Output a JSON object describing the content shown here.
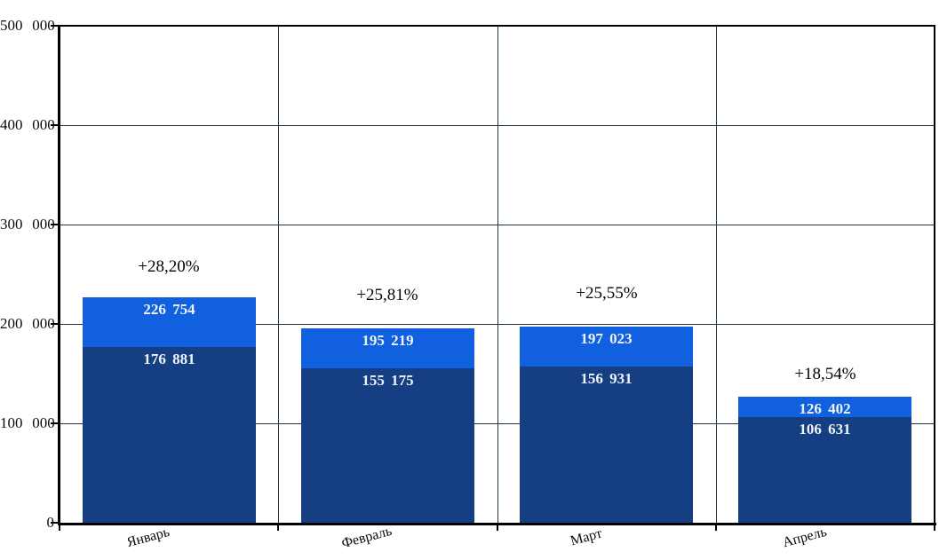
{
  "chart_data": {
    "type": "bar",
    "mode": "overlapped",
    "title": "",
    "xlabel": "",
    "ylabel": "",
    "categories": [
      "Январь",
      "Февраль",
      "Март",
      "Апрель"
    ],
    "series": [
      {
        "name": "light-blue-series",
        "color": "#1160e0",
        "values": [
          226754,
          195219,
          197023,
          126402
        ],
        "value_labels": [
          "226 754",
          "195 219",
          "197 023",
          "126 402"
        ],
        "label_color": "#eff4fa"
      },
      {
        "name": "dark-blue-series",
        "color": "#163e82",
        "values": [
          176881,
          155175,
          156931,
          106631
        ],
        "value_labels": [
          "176 881",
          "155 175",
          "156 931",
          "106 631"
        ],
        "label_color": "#eff4fa"
      }
    ],
    "growth_labels": [
      "+28,20%",
      "+25,81%",
      "+25,55%",
      "+18,54%"
    ],
    "ylim": [
      0,
      500000
    ],
    "ytick_step": 100000,
    "ytick_labels": [
      "0",
      "100 000",
      "200 000",
      "300 000",
      "400 000",
      "500 000"
    ],
    "grid": true,
    "legend_position": "none",
    "colors": {
      "background": "#ffffff",
      "gridline": "#1d3442",
      "axis": "#000000",
      "growth_text": "#050505",
      "tick_text": "#0a0a0a"
    }
  }
}
